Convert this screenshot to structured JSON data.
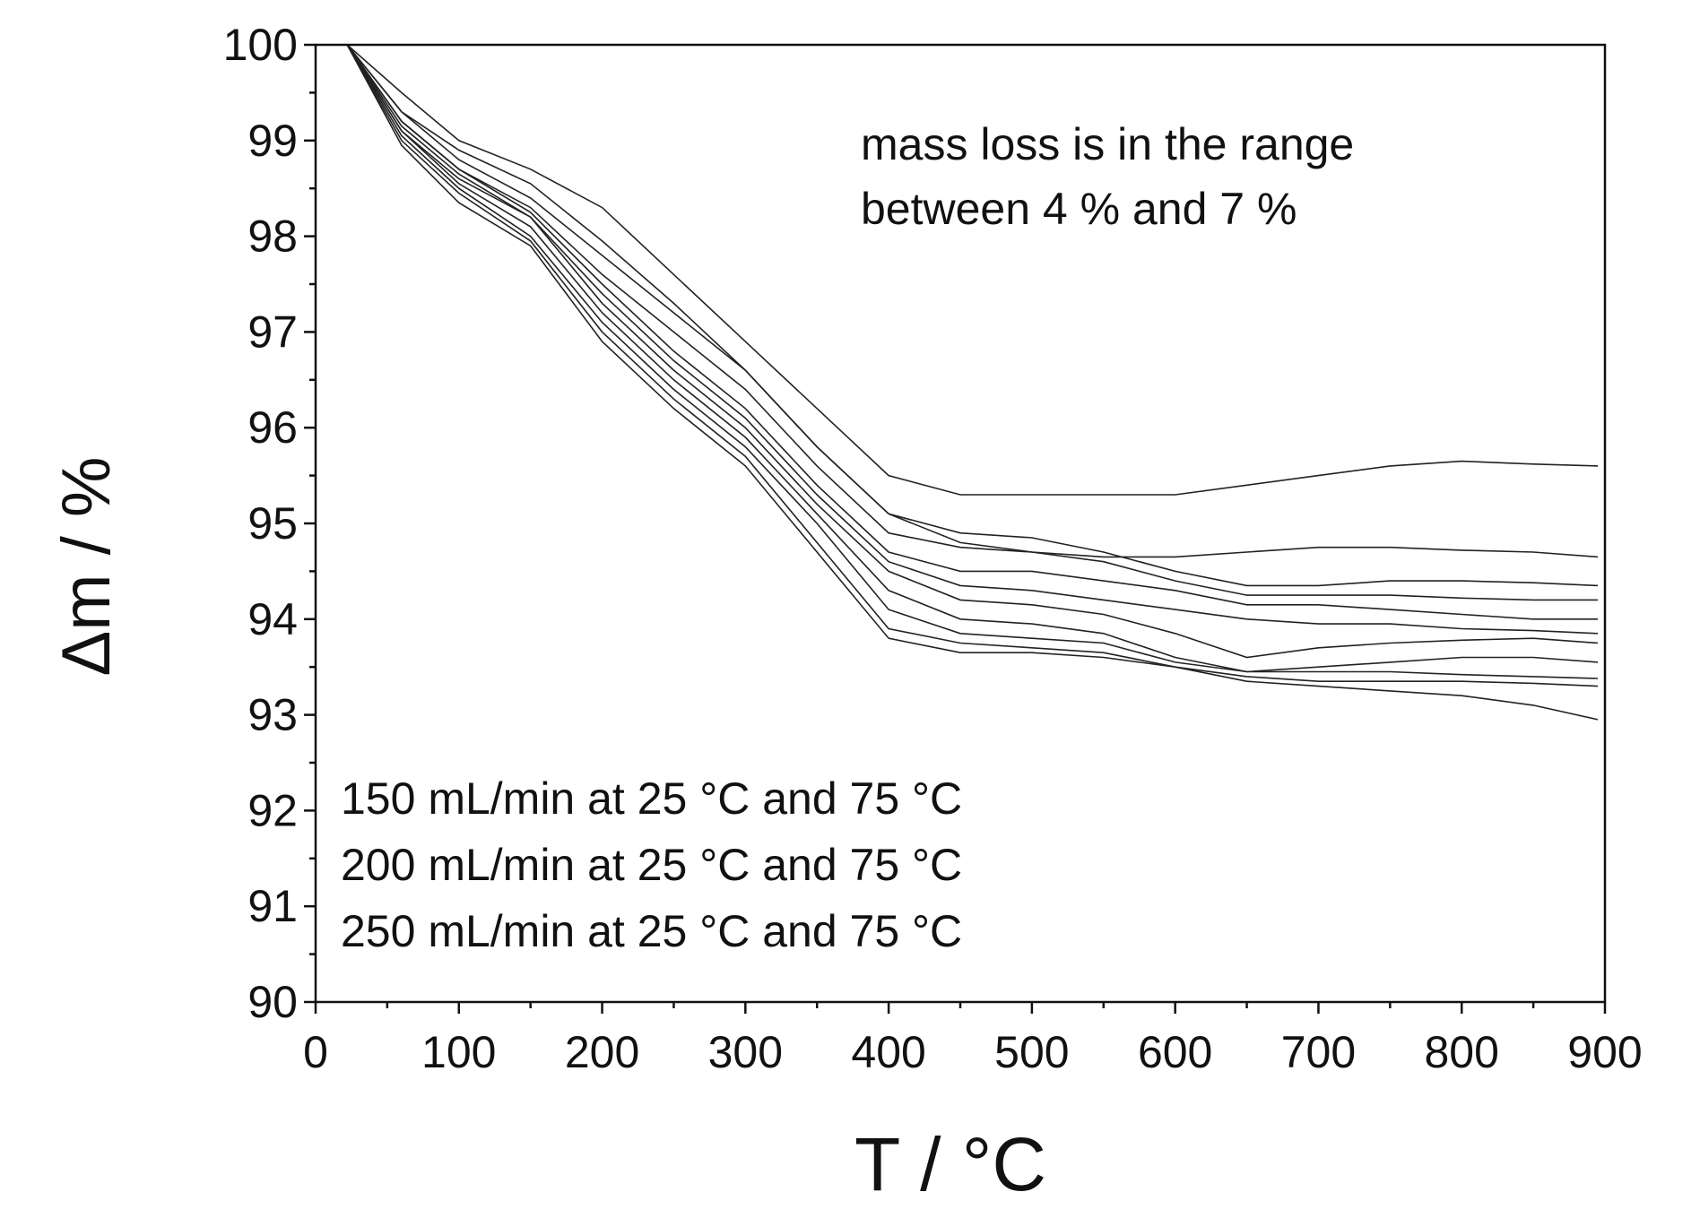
{
  "chart_data": {
    "type": "line",
    "title": "",
    "xlabel": "T / °C",
    "ylabel": "Δm / %",
    "xlim": [
      0,
      900
    ],
    "ylim": [
      90,
      100
    ],
    "x_ticks": [
      0,
      100,
      200,
      300,
      400,
      500,
      600,
      700,
      800,
      900
    ],
    "y_ticks": [
      90,
      91,
      92,
      93,
      94,
      95,
      96,
      97,
      98,
      99,
      100
    ],
    "grid": false,
    "legend": "none",
    "annotations": {
      "mass_loss_line1": "mass loss is in the range",
      "mass_loss_line2": "between 4 % and 7 %",
      "conditions": [
        "150 mL/min at 25 °C and 75 °C",
        "200 mL/min at 25 °C and 75 °C",
        "250 mL/min at 25 °C and 75 °C"
      ]
    },
    "series": [
      {
        "x": [
          22,
          60,
          100,
          150,
          200,
          250,
          300,
          350,
          400,
          450,
          500,
          550,
          600,
          650,
          700,
          750,
          800,
          850,
          895
        ],
        "y": [
          100,
          99.5,
          99.0,
          98.7,
          98.3,
          97.6,
          96.9,
          96.2,
          95.5,
          95.3,
          95.3,
          95.3,
          95.3,
          95.4,
          95.5,
          95.6,
          95.65,
          95.62,
          95.6
        ]
      },
      {
        "x": [
          22,
          60,
          100,
          150,
          200,
          250,
          300,
          350,
          400,
          450,
          500,
          550,
          600,
          650,
          700,
          750,
          800,
          850,
          895
        ],
        "y": [
          100,
          99.3,
          98.9,
          98.55,
          97.95,
          97.3,
          96.6,
          95.8,
          95.1,
          94.8,
          94.7,
          94.65,
          94.65,
          94.7,
          94.75,
          94.75,
          94.72,
          94.7,
          94.65
        ]
      },
      {
        "x": [
          22,
          60,
          100,
          150,
          200,
          250,
          300,
          350,
          400,
          450,
          500,
          550,
          600,
          650,
          700,
          750,
          800,
          850,
          895
        ],
        "y": [
          100,
          99.3,
          98.8,
          98.4,
          97.8,
          97.2,
          96.6,
          95.8,
          95.1,
          94.9,
          94.85,
          94.7,
          94.5,
          94.35,
          94.35,
          94.4,
          94.4,
          94.38,
          94.35
        ]
      },
      {
        "x": [
          22,
          60,
          100,
          150,
          200,
          250,
          300,
          350,
          400,
          450,
          500,
          550,
          600,
          650,
          700,
          750,
          800,
          850,
          895
        ],
        "y": [
          100,
          99.2,
          98.7,
          98.3,
          97.6,
          97.0,
          96.4,
          95.6,
          94.9,
          94.75,
          94.7,
          94.6,
          94.4,
          94.25,
          94.25,
          94.25,
          94.22,
          94.2,
          94.2
        ]
      },
      {
        "x": [
          22,
          60,
          100,
          150,
          200,
          250,
          300,
          350,
          400,
          450,
          500,
          550,
          600,
          650,
          700,
          750,
          800,
          850,
          895
        ],
        "y": [
          100,
          99.2,
          98.7,
          98.25,
          97.5,
          96.8,
          96.2,
          95.4,
          94.7,
          94.5,
          94.5,
          94.4,
          94.3,
          94.15,
          94.15,
          94.1,
          94.05,
          94.0,
          94.0
        ]
      },
      {
        "x": [
          22,
          60,
          100,
          150,
          200,
          250,
          300,
          350,
          400,
          450,
          500,
          550,
          600,
          650,
          700,
          750,
          800,
          850,
          895
        ],
        "y": [
          100,
          99.15,
          98.65,
          98.2,
          97.4,
          96.7,
          96.1,
          95.3,
          94.6,
          94.35,
          94.3,
          94.2,
          94.1,
          94.0,
          93.95,
          93.95,
          93.9,
          93.88,
          93.85
        ]
      },
      {
        "x": [
          22,
          60,
          100,
          150,
          200,
          250,
          300,
          350,
          400,
          450,
          500,
          550,
          600,
          650,
          700,
          750,
          800,
          850,
          895
        ],
        "y": [
          100,
          99.1,
          98.6,
          98.2,
          97.3,
          96.6,
          96.0,
          95.2,
          94.5,
          94.2,
          94.15,
          94.05,
          93.85,
          93.6,
          93.7,
          93.75,
          93.78,
          93.8,
          93.75
        ]
      },
      {
        "x": [
          22,
          60,
          100,
          150,
          200,
          250,
          300,
          350,
          400,
          450,
          500,
          550,
          600,
          650,
          700,
          750,
          800,
          850,
          895
        ],
        "y": [
          100,
          99.1,
          98.55,
          98.1,
          97.2,
          96.5,
          95.9,
          95.1,
          94.3,
          94.0,
          93.95,
          93.85,
          93.6,
          93.45,
          93.5,
          93.55,
          93.6,
          93.6,
          93.55
        ]
      },
      {
        "x": [
          22,
          60,
          100,
          150,
          200,
          250,
          300,
          350,
          400,
          450,
          500,
          550,
          600,
          650,
          700,
          750,
          800,
          850,
          895
        ],
        "y": [
          100,
          99.05,
          98.5,
          98.0,
          97.1,
          96.4,
          95.8,
          95.0,
          94.1,
          93.85,
          93.8,
          93.75,
          93.55,
          93.45,
          93.45,
          93.45,
          93.42,
          93.4,
          93.38
        ]
      },
      {
        "x": [
          22,
          60,
          100,
          150,
          200,
          250,
          300,
          350,
          400,
          450,
          500,
          550,
          600,
          650,
          700,
          750,
          800,
          850,
          895
        ],
        "y": [
          100,
          99.0,
          98.45,
          97.95,
          97.0,
          96.3,
          95.7,
          94.8,
          93.9,
          93.75,
          93.7,
          93.65,
          93.5,
          93.4,
          93.35,
          93.35,
          93.35,
          93.33,
          93.3
        ]
      },
      {
        "x": [
          22,
          60,
          100,
          150,
          200,
          250,
          300,
          350,
          400,
          450,
          500,
          550,
          600,
          650,
          700,
          750,
          800,
          850,
          895
        ],
        "y": [
          100,
          98.95,
          98.35,
          97.9,
          96.9,
          96.2,
          95.6,
          94.7,
          93.8,
          93.65,
          93.65,
          93.6,
          93.5,
          93.35,
          93.3,
          93.25,
          93.2,
          93.1,
          92.95
        ]
      }
    ]
  }
}
